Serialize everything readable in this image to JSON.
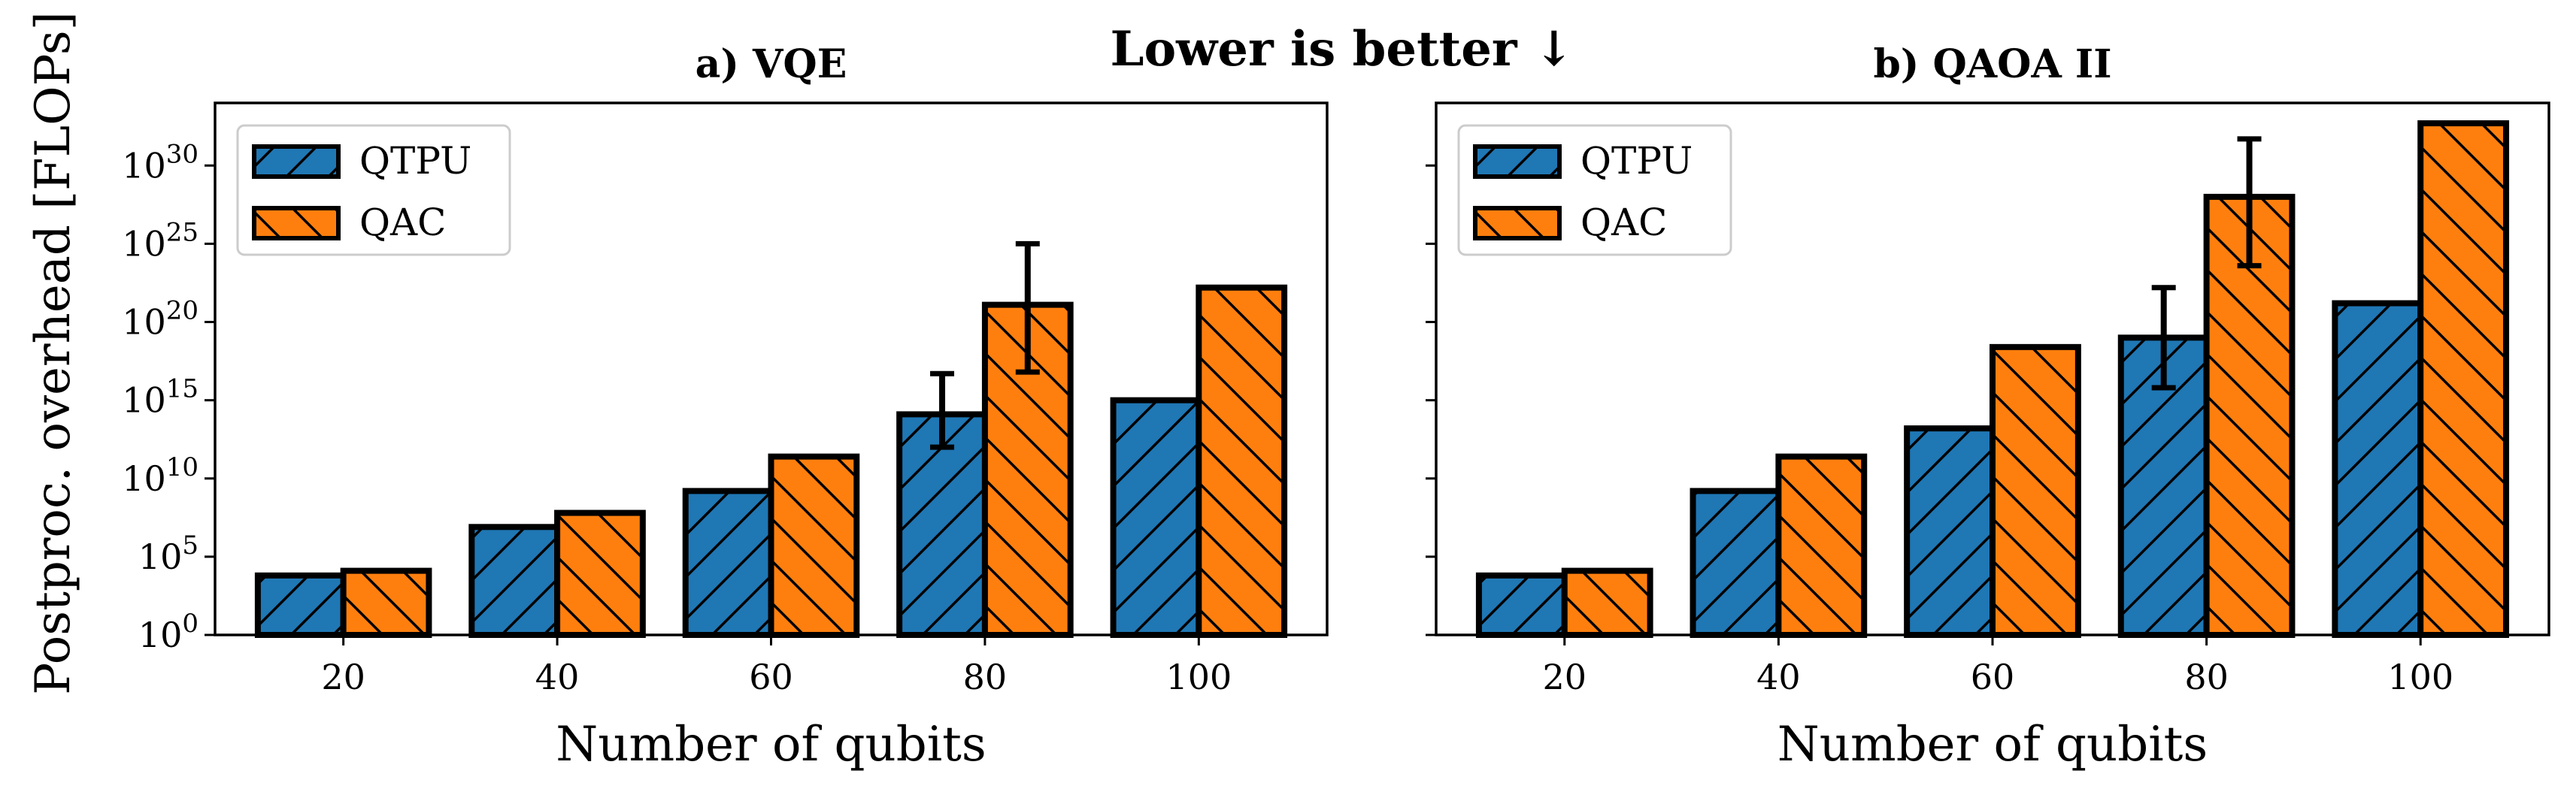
{
  "figure": {
    "suptitle": "Lower is better ↓",
    "suptitle_color": "#191970",
    "ylabel": "Postproc. overhead [FLOPs]"
  },
  "colors": {
    "qtpu": "#1f77b4",
    "qac": "#ff7f0e",
    "edge": "#000000"
  },
  "chart_data": [
    {
      "type": "bar",
      "title": "a) VQE",
      "xlabel": "Number of qubits",
      "ylabel": "Postproc. overhead [FLOPs]",
      "yscale": "log",
      "ylim_exp": [
        0,
        34
      ],
      "yticks_exp": [
        0,
        5,
        10,
        15,
        20,
        25,
        30
      ],
      "categories": [
        "20",
        "40",
        "60",
        "80",
        "100"
      ],
      "legend": {
        "placement": "top-left",
        "entries": [
          "QTPU",
          "QAC"
        ]
      },
      "series": [
        {
          "name": "QTPU",
          "hatch": "forward",
          "log10_values": [
            3.8,
            6.9,
            9.2,
            14.1,
            15.0
          ],
          "err_log10": [
            null,
            null,
            null,
            [
              12.0,
              16.7
            ],
            null
          ]
        },
        {
          "name": "QAC",
          "hatch": "backward",
          "log10_values": [
            4.1,
            7.8,
            11.4,
            21.1,
            22.2
          ],
          "err_log10": [
            null,
            null,
            null,
            [
              16.8,
              25.0
            ],
            null
          ]
        }
      ]
    },
    {
      "type": "bar",
      "title": "b) QAOA II",
      "xlabel": "Number of qubits",
      "ylabel": "",
      "yscale": "log",
      "ylim_exp": [
        0,
        34
      ],
      "yticks_exp": [
        0,
        5,
        10,
        15,
        20,
        25,
        30
      ],
      "categories": [
        "20",
        "40",
        "60",
        "80",
        "100"
      ],
      "legend": {
        "placement": "top-left",
        "entries": [
          "QTPU",
          "QAC"
        ]
      },
      "series": [
        {
          "name": "QTPU",
          "hatch": "forward",
          "log10_values": [
            3.8,
            9.2,
            13.2,
            19.0,
            21.2
          ],
          "err_log10": [
            null,
            null,
            null,
            [
              15.8,
              22.2
            ],
            null
          ]
        },
        {
          "name": "QAC",
          "hatch": "backward",
          "log10_values": [
            4.1,
            11.4,
            18.4,
            28.0,
            32.7
          ],
          "err_log10": [
            null,
            null,
            null,
            [
              23.6,
              31.7
            ],
            null
          ]
        }
      ]
    }
  ]
}
